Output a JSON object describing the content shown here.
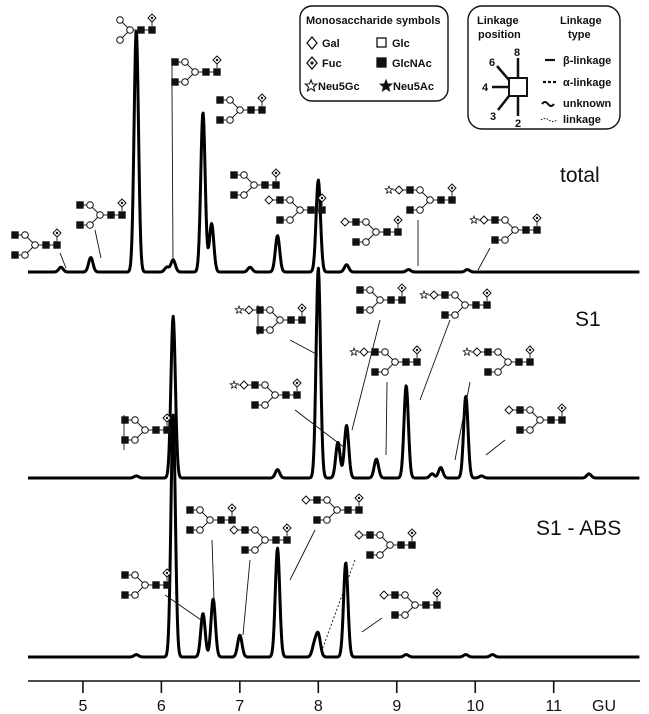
{
  "legend_symbols": {
    "title": "Monosaccharide symbols",
    "items": [
      {
        "label": "Gal",
        "icon": "open-diamond"
      },
      {
        "label": "Glc",
        "icon": "open-square"
      },
      {
        "label": "Fuc",
        "icon": "dotted-diamond"
      },
      {
        "label": "GlcNAc",
        "icon": "filled-square"
      },
      {
        "label": "Neu5Gc",
        "icon": "open-star"
      },
      {
        "label": "Neu5Ac",
        "icon": "filled-star"
      }
    ]
  },
  "legend_linkage": {
    "position_title_1": "Linkage",
    "position_title_2": "position",
    "type_title_1": "Linkage",
    "type_title_2": "type",
    "positions": [
      "6",
      "8",
      "4",
      "3",
      "2"
    ],
    "types": [
      {
        "label": "β-linkage",
        "style": "solid"
      },
      {
        "label": "α-linkage",
        "style": "dashed"
      },
      {
        "label": "unknown",
        "style": "wavy"
      },
      {
        "label": "linkage",
        "style": "dotted"
      }
    ]
  },
  "chart_data": {
    "type": "line",
    "xlabel": "GU",
    "xlim": [
      4.3,
      12.1
    ],
    "xticks": [
      5,
      6,
      7,
      8,
      9,
      10,
      11
    ],
    "tick_labels": [
      "5",
      "6",
      "7",
      "8",
      "9",
      "10",
      "11"
    ],
    "y_axis_shown": false,
    "grid": false,
    "series": [
      {
        "name": "total",
        "color": "#000000",
        "peaks": [
          {
            "gu": 4.72,
            "h": 0.02
          },
          {
            "gu": 5.1,
            "h": 0.06
          },
          {
            "gu": 5.68,
            "h": 1.0
          },
          {
            "gu": 6.07,
            "h": 0.02
          },
          {
            "gu": 6.15,
            "h": 0.05
          },
          {
            "gu": 6.53,
            "h": 0.66
          },
          {
            "gu": 6.64,
            "h": 0.2
          },
          {
            "gu": 7.13,
            "h": 0.02
          },
          {
            "gu": 7.48,
            "h": 0.15
          },
          {
            "gu": 8.0,
            "h": 0.38
          },
          {
            "gu": 8.36,
            "h": 0.03
          },
          {
            "gu": 9.15,
            "h": 0.01
          },
          {
            "gu": 9.9,
            "h": 0.01
          }
        ]
      },
      {
        "name": "S1",
        "color": "#000000",
        "peaks": [
          {
            "gu": 5.68,
            "h": 0.01
          },
          {
            "gu": 6.15,
            "h": 0.77
          },
          {
            "gu": 7.48,
            "h": 0.04
          },
          {
            "gu": 8.0,
            "h": 1.0
          },
          {
            "gu": 8.25,
            "h": 0.17
          },
          {
            "gu": 8.36,
            "h": 0.25
          },
          {
            "gu": 8.74,
            "h": 0.09
          },
          {
            "gu": 9.12,
            "h": 0.44
          },
          {
            "gu": 9.45,
            "h": 0.02
          },
          {
            "gu": 9.56,
            "h": 0.05
          },
          {
            "gu": 9.88,
            "h": 0.39
          },
          {
            "gu": 10.08,
            "h": 0.01
          },
          {
            "gu": 11.45,
            "h": 0.02
          }
        ]
      },
      {
        "name": "S1 - ABS",
        "color": "#000000",
        "peaks": [
          {
            "gu": 5.68,
            "h": 0.01
          },
          {
            "gu": 6.15,
            "h": 1.0
          },
          {
            "gu": 6.53,
            "h": 0.18
          },
          {
            "gu": 6.66,
            "h": 0.24
          },
          {
            "gu": 7.0,
            "h": 0.09
          },
          {
            "gu": 7.48,
            "h": 0.45
          },
          {
            "gu": 7.95,
            "h": 0.05
          },
          {
            "gu": 8.0,
            "h": 0.09
          },
          {
            "gu": 8.35,
            "h": 0.39
          },
          {
            "gu": 9.12,
            "h": 0.01
          },
          {
            "gu": 9.88,
            "h": 0.01
          },
          {
            "gu": 10.22,
            "h": 0.01
          }
        ]
      }
    ],
    "annotations": "glycan structure cartoons above peaks (symbolic, no text)"
  }
}
